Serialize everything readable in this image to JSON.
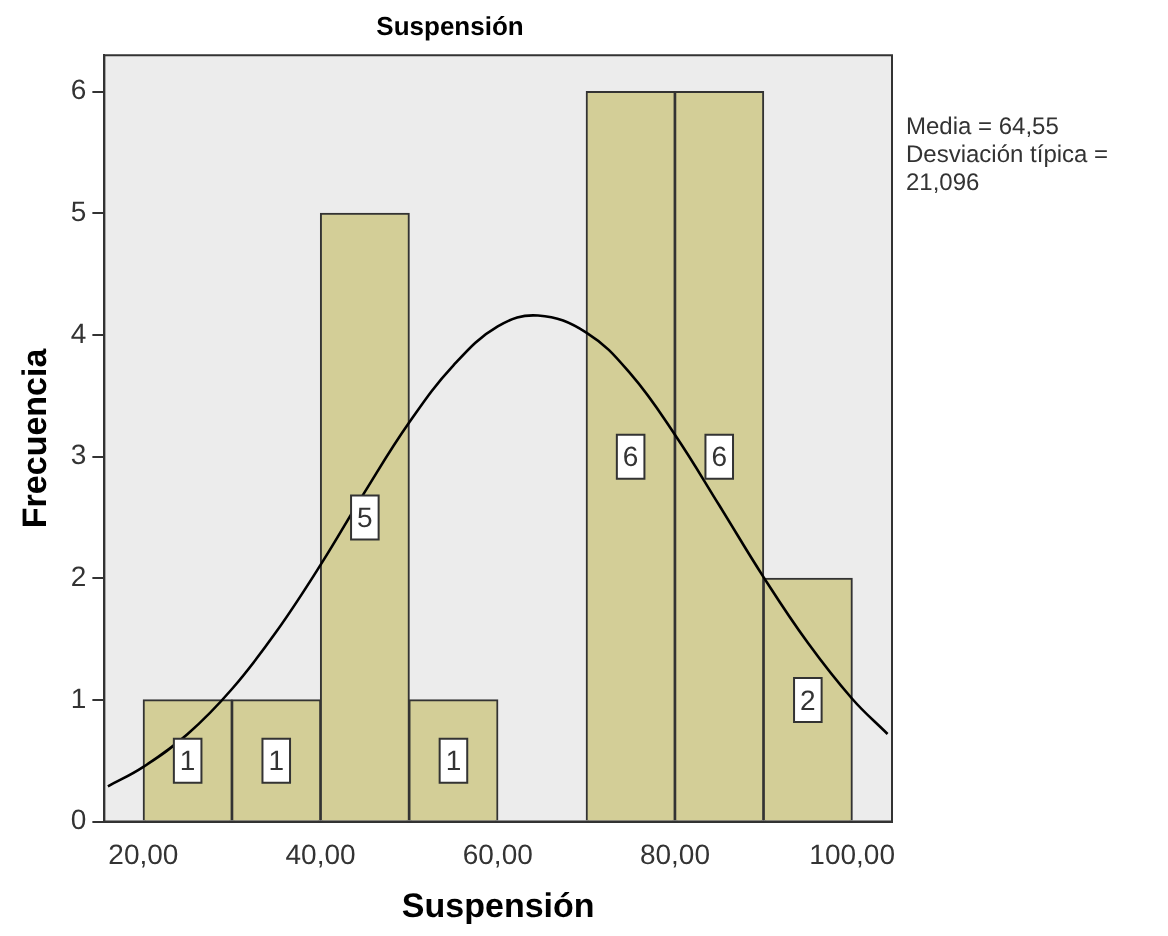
{
  "chart_data": {
    "type": "histogram",
    "title": "Suspensión",
    "xlabel": "Suspensión",
    "ylabel": "Frecuencia",
    "bins": [
      20,
      30,
      40,
      50,
      60,
      70,
      80,
      90,
      100
    ],
    "values": [
      1,
      1,
      5,
      1,
      0,
      6,
      6,
      2
    ],
    "value_labels": [
      "1",
      "1",
      "5",
      "1",
      null,
      "6",
      "6",
      "2"
    ],
    "color": "#d3ce97",
    "series": [
      {
        "type": "line",
        "color": "#000000",
        "x": [
          16,
          20,
          25,
          30,
          35,
          40,
          45,
          50,
          55,
          60,
          64.55,
          70,
          75,
          80,
          85,
          90,
          95,
          100,
          104
        ],
        "values": [
          0.29,
          0.45,
          0.72,
          1.09,
          1.56,
          2.11,
          2.71,
          3.28,
          3.75,
          4.07,
          4.16,
          4.02,
          3.68,
          3.18,
          2.6,
          2.01,
          1.47,
          1.01,
          0.72
        ]
      }
    ],
    "xlim": [
      15.6,
      104.5
    ],
    "ylim": [
      0,
      6.3
    ],
    "xticks": [
      {
        "value": 20,
        "label": "20,00"
      },
      {
        "value": 40,
        "label": "40,00"
      },
      {
        "value": 60,
        "label": "60,00"
      },
      {
        "value": 80,
        "label": "80,00"
      },
      {
        "value": 100,
        "label": "100,00"
      }
    ],
    "yticks": [
      0,
      1,
      2,
      3,
      4,
      5,
      6
    ],
    "annotations": [
      "Media = 64,55",
      "Desviación típica =",
      "21,096"
    ],
    "grid": false,
    "legend": false
  }
}
